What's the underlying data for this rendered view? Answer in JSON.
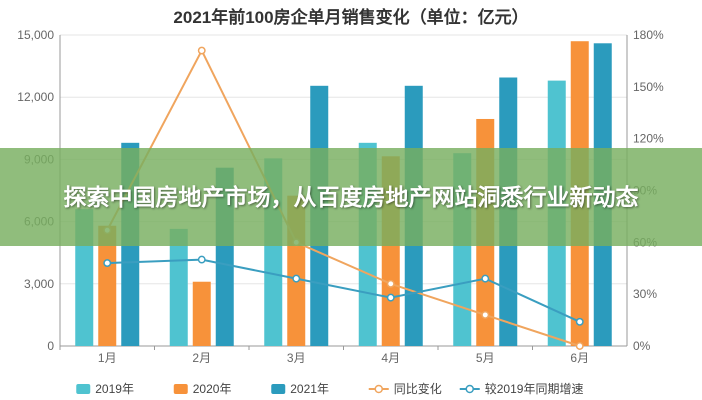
{
  "chart_data": {
    "type": "bar",
    "title": "2021年前100房企单月销售变化（单位：亿元）",
    "categories": [
      "1月",
      "2月",
      "3月",
      "4月",
      "5月",
      "6月"
    ],
    "y_left_ticks": [
      "0",
      "3,000",
      "6,000",
      "9,000",
      "12,000",
      "15,000"
    ],
    "y_right_ticks": [
      "0%",
      "30%",
      "60%",
      "90%",
      "120%",
      "150%",
      "180%"
    ],
    "ylim_left": [
      0,
      15000
    ],
    "ylim_right": [
      0,
      1.8
    ],
    "grid": true,
    "legend_position": "bottom",
    "series": [
      {
        "name": "2019年",
        "type": "bar",
        "axis": "left",
        "color": "#4fc3d0",
        "values": [
          6600,
          5650,
          9050,
          9800,
          9300,
          12800
        ]
      },
      {
        "name": "2020年",
        "type": "bar",
        "axis": "left",
        "color": "#f7923a",
        "values": [
          5800,
          3100,
          7250,
          9150,
          10950,
          14700
        ]
      },
      {
        "name": "2021年",
        "type": "bar",
        "axis": "left",
        "color": "#2b9bbd",
        "values": [
          9800,
          8600,
          12550,
          12550,
          12950,
          14600
        ]
      },
      {
        "name": "同比变化",
        "type": "line",
        "axis": "right",
        "color": "#f0a55e",
        "values": [
          0.67,
          1.71,
          0.6,
          0.36,
          0.18,
          0.0
        ]
      },
      {
        "name": "较2019年同期增速",
        "type": "line",
        "axis": "right",
        "color": "#3a9ec0",
        "values": [
          0.48,
          0.5,
          0.39,
          0.28,
          0.39,
          0.14
        ]
      }
    ]
  },
  "overlay": {
    "banner_text": "探索中国房地产市场，从百度房地产网站洞悉行业新动态"
  }
}
